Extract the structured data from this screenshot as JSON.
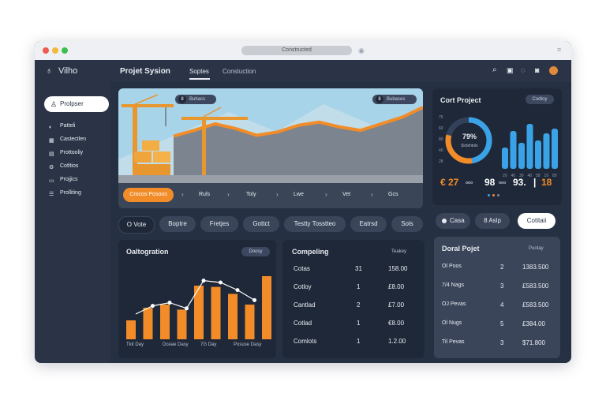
{
  "window": {
    "address": "Constructed"
  },
  "app": {
    "logo_text": "Vilho"
  },
  "header": {
    "title": "Projet Sysion",
    "tabs": [
      {
        "label": "Soptes"
      },
      {
        "label": "Constuction"
      }
    ]
  },
  "sidebar": {
    "active_label": "Prolpser",
    "items": [
      {
        "label": "Patteli",
        "icon": "user-icon"
      },
      {
        "label": "Castectlen",
        "icon": "grid-icon"
      },
      {
        "label": "Prottooliy",
        "icon": "chart-icon"
      },
      {
        "label": "Cotltios",
        "icon": "gear-icon"
      },
      {
        "label": "Projjics",
        "icon": "folder-icon"
      },
      {
        "label": "Prolliting",
        "icon": "list-icon"
      }
    ]
  },
  "hero": {
    "tag_left": "Buhacs",
    "tag_right": "Bubaces",
    "tag_left_num": "8",
    "tag_right_num": "8",
    "timeline_active": "Crocos Posoos",
    "timeline": [
      "Ruls",
      "Toly",
      "Lwe",
      "Vet",
      "Gcs"
    ],
    "profile": [
      0.55,
      0.62,
      0.7,
      0.64,
      0.56,
      0.6,
      0.68,
      0.72,
      0.66,
      0.62,
      0.7,
      0.78,
      0.9
    ]
  },
  "chips": [
    "O Vote",
    "Boptre",
    "Fretjes",
    "Gottct",
    "Testty Tosstteo",
    "Eatrsd",
    "Sols"
  ],
  "right_chips": {
    "left": "Casa",
    "mid": "8 Aslp",
    "right": "Cotitaii"
  },
  "cost_project": {
    "title": "Cort Project",
    "button": "Codtoy",
    "donut_value": "79%",
    "donut_sub": "Slctehtols",
    "donut_fraction": 0.79,
    "bars": [
      0.45,
      0.8,
      0.55,
      0.95,
      0.6,
      0.75,
      0.85
    ],
    "x_labels": [
      "20",
      "40",
      "30",
      "48",
      "58",
      "19",
      "80"
    ],
    "y_labels": [
      "75",
      "60",
      "80",
      "40",
      "28"
    ],
    "stats": [
      {
        "value": "€ 27",
        "suffix": "ooo"
      },
      {
        "value": "98",
        "suffix": "ooo"
      },
      {
        "value": "93.",
        "suffix": ""
      },
      {
        "value": "18",
        "suffix": ""
      }
    ],
    "accent": "#f28c28",
    "bar_color": "#3aa3e8"
  },
  "optimisation": {
    "title": "Oaltogration",
    "button": "Doosy",
    "bars": [
      0.3,
      0.5,
      0.55,
      0.47,
      0.85,
      0.83,
      0.72,
      0.55,
      1.0
    ],
    "line": [
      0.4,
      0.53,
      0.58,
      0.49,
      0.93,
      0.9,
      0.78,
      0.62
    ],
    "x_labels": [
      "Tkit Day",
      "Dceae Dasy",
      "7G Day",
      "Posuse Dasy"
    ],
    "color": "#f28c28"
  },
  "competing": {
    "title": "Compeling",
    "button": "Teakey",
    "rows": [
      {
        "name": "Cotas",
        "n": "31",
        "amount": "158.00"
      },
      {
        "name": "Cotloy",
        "n": "1",
        "amount": "£8.00"
      },
      {
        "name": "Cantlad",
        "n": "2",
        "amount": "£7.00"
      },
      {
        "name": "Cotlad",
        "n": "1",
        "amount": "€8.00"
      },
      {
        "name": "Comlots",
        "n": "1",
        "amount": "1.2.00"
      }
    ]
  },
  "doral": {
    "title": "Doral Pojet",
    "button": "Puotay",
    "rows": [
      {
        "name": "Ol Poos",
        "n": "2",
        "amount": "1383.500"
      },
      {
        "name": "7/4 Nags",
        "n": "3",
        "amount": "£583.500"
      },
      {
        "name": "OJ Pevas",
        "n": "4",
        "amount": "£583.500"
      },
      {
        "name": "Ol Nugs",
        "n": "5",
        "amount": "£384.00"
      },
      {
        "name": "Til Pevas",
        "n": "3",
        "amount": "$71.800"
      }
    ]
  }
}
